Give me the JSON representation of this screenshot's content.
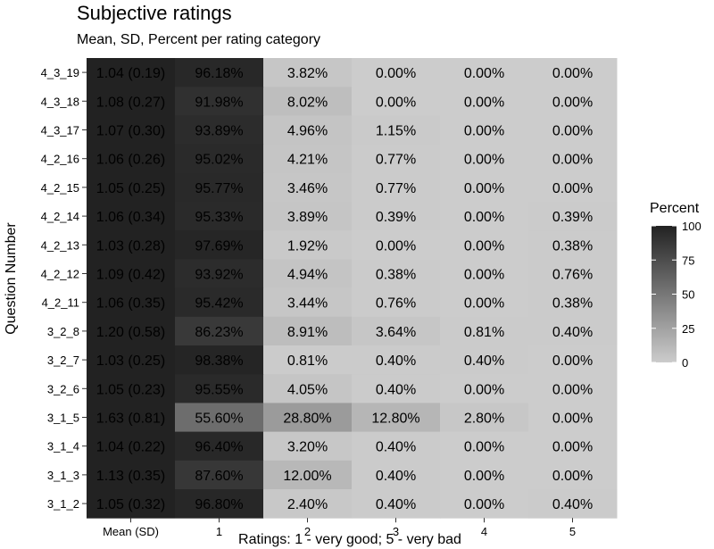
{
  "chart_data": {
    "type": "heatmap",
    "title": "Subjective ratings",
    "subtitle": "Mean, SD, Percent per rating category",
    "xlabel": "Ratings: 1 - very good; 5 - very bad",
    "ylabel": "Question Number",
    "x_categories": [
      "Mean (SD)",
      "1",
      "2",
      "3",
      "4",
      "5"
    ],
    "y_categories": [
      "4_3_19",
      "4_3_18",
      "4_3_17",
      "4_2_16",
      "4_2_15",
      "4_2_14",
      "4_2_13",
      "4_2_12",
      "4_2_11",
      "3_2_8",
      "3_2_7",
      "3_2_6",
      "3_1_5",
      "3_1_4",
      "3_1_3",
      "3_1_2"
    ],
    "rows": [
      {
        "question": "4_3_19",
        "mean_sd": "1.04 (0.19)",
        "percents": [
          96.18,
          3.82,
          0.0,
          0.0,
          0.0
        ],
        "labels": [
          "96.18%",
          "3.82%",
          "0.00%",
          "0.00%",
          "0.00%"
        ]
      },
      {
        "question": "4_3_18",
        "mean_sd": "1.08 (0.27)",
        "percents": [
          91.98,
          8.02,
          0.0,
          0.0,
          0.0
        ],
        "labels": [
          "91.98%",
          "8.02%",
          "0.00%",
          "0.00%",
          "0.00%"
        ]
      },
      {
        "question": "4_3_17",
        "mean_sd": "1.07 (0.30)",
        "percents": [
          93.89,
          4.96,
          1.15,
          0.0,
          0.0
        ],
        "labels": [
          "93.89%",
          "4.96%",
          "1.15%",
          "0.00%",
          "0.00%"
        ]
      },
      {
        "question": "4_2_16",
        "mean_sd": "1.06 (0.26)",
        "percents": [
          95.02,
          4.21,
          0.77,
          0.0,
          0.0
        ],
        "labels": [
          "95.02%",
          "4.21%",
          "0.77%",
          "0.00%",
          "0.00%"
        ]
      },
      {
        "question": "4_2_15",
        "mean_sd": "1.05 (0.25)",
        "percents": [
          95.77,
          3.46,
          0.77,
          0.0,
          0.0
        ],
        "labels": [
          "95.77%",
          "3.46%",
          "0.77%",
          "0.00%",
          "0.00%"
        ]
      },
      {
        "question": "4_2_14",
        "mean_sd": "1.06 (0.34)",
        "percents": [
          95.33,
          3.89,
          0.39,
          0.0,
          0.39
        ],
        "labels": [
          "95.33%",
          "3.89%",
          "0.39%",
          "0.00%",
          "0.39%"
        ]
      },
      {
        "question": "4_2_13",
        "mean_sd": "1.03 (0.28)",
        "percents": [
          97.69,
          1.92,
          0.0,
          0.0,
          0.38
        ],
        "labels": [
          "97.69%",
          "1.92%",
          "0.00%",
          "0.00%",
          "0.38%"
        ]
      },
      {
        "question": "4_2_12",
        "mean_sd": "1.09 (0.42)",
        "percents": [
          93.92,
          4.94,
          0.38,
          0.0,
          0.76
        ],
        "labels": [
          "93.92%",
          "4.94%",
          "0.38%",
          "0.00%",
          "0.76%"
        ]
      },
      {
        "question": "4_2_11",
        "mean_sd": "1.06 (0.35)",
        "percents": [
          95.42,
          3.44,
          0.76,
          0.0,
          0.38
        ],
        "labels": [
          "95.42%",
          "3.44%",
          "0.76%",
          "0.00%",
          "0.38%"
        ]
      },
      {
        "question": "3_2_8",
        "mean_sd": "1.20 (0.58)",
        "percents": [
          86.23,
          8.91,
          3.64,
          0.81,
          0.4
        ],
        "labels": [
          "86.23%",
          "8.91%",
          "3.64%",
          "0.81%",
          "0.40%"
        ]
      },
      {
        "question": "3_2_7",
        "mean_sd": "1.03 (0.25)",
        "percents": [
          98.38,
          0.81,
          0.4,
          0.4,
          0.0
        ],
        "labels": [
          "98.38%",
          "0.81%",
          "0.40%",
          "0.40%",
          "0.00%"
        ]
      },
      {
        "question": "3_2_6",
        "mean_sd": "1.05 (0.23)",
        "percents": [
          95.55,
          4.05,
          0.4,
          0.0,
          0.0
        ],
        "labels": [
          "95.55%",
          "4.05%",
          "0.40%",
          "0.00%",
          "0.00%"
        ]
      },
      {
        "question": "3_1_5",
        "mean_sd": "1.63 (0.81)",
        "percents": [
          55.6,
          28.8,
          12.8,
          2.8,
          0.0
        ],
        "labels": [
          "55.60%",
          "28.80%",
          "12.80%",
          "2.80%",
          "0.00%"
        ]
      },
      {
        "question": "3_1_4",
        "mean_sd": "1.04 (0.22)",
        "percents": [
          96.4,
          3.2,
          0.4,
          0.0,
          0.0
        ],
        "labels": [
          "96.40%",
          "3.20%",
          "0.40%",
          "0.00%",
          "0.00%"
        ]
      },
      {
        "question": "3_1_3",
        "mean_sd": "1.13 (0.35)",
        "percents": [
          87.6,
          12.0,
          0.4,
          0.0,
          0.0
        ],
        "labels": [
          "87.60%",
          "12.00%",
          "0.40%",
          "0.00%",
          "0.00%"
        ]
      },
      {
        "question": "3_1_2",
        "mean_sd": "1.05 (0.32)",
        "percents": [
          96.8,
          2.4,
          0.4,
          0.0,
          0.4
        ],
        "labels": [
          "96.80%",
          "2.40%",
          "0.40%",
          "0.00%",
          "0.40%"
        ]
      }
    ],
    "mean_column_value": 100,
    "legend": {
      "title": "Percent",
      "ticks": [
        0,
        25,
        50,
        75,
        100
      ],
      "range": [
        0,
        100
      ],
      "low_color": "#cccccc",
      "high_color": "#222222",
      "position": "right"
    },
    "grid": false
  }
}
